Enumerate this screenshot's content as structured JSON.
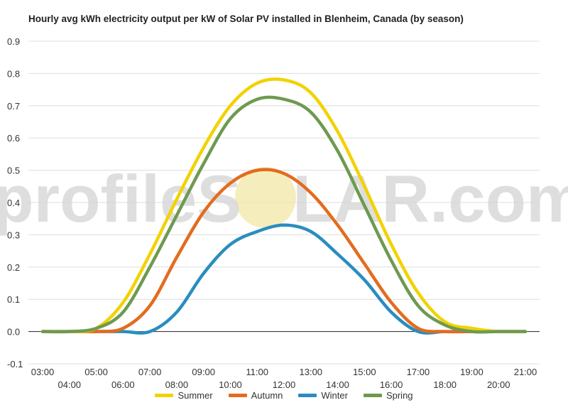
{
  "chart_data": {
    "type": "line",
    "title": "Hourly avg kWh electricity output per kW of Solar PV installed in Blenheim, Canada (by season)",
    "watermark": {
      "text_left": "profileS",
      "text_right": "LAR.com"
    },
    "xlabel": "",
    "ylabel": "",
    "ylim": [
      -0.1,
      0.9
    ],
    "yticks": [
      "-0.1",
      "0.0",
      "0.1",
      "0.2",
      "0.3",
      "0.4",
      "0.5",
      "0.6",
      "0.7",
      "0.8",
      "0.9"
    ],
    "grid": true,
    "legend_position": "bottom",
    "x": [
      "03:00",
      "04:00",
      "05:00",
      "06:00",
      "07:00",
      "08:00",
      "09:00",
      "10:00",
      "11:00",
      "12:00",
      "13:00",
      "14:00",
      "15:00",
      "16:00",
      "17:00",
      "18:00",
      "19:00",
      "20:00",
      "21:00"
    ],
    "series": [
      {
        "name": "Summer",
        "color": "#f2d200",
        "values": [
          0.0,
          0.0,
          0.01,
          0.09,
          0.24,
          0.41,
          0.57,
          0.7,
          0.77,
          0.78,
          0.74,
          0.62,
          0.45,
          0.27,
          0.12,
          0.03,
          0.01,
          0.0,
          0.0
        ]
      },
      {
        "name": "Autumn",
        "color": "#e36c1e",
        "values": [
          0.0,
          0.0,
          0.0,
          0.01,
          0.08,
          0.23,
          0.37,
          0.46,
          0.5,
          0.49,
          0.43,
          0.33,
          0.21,
          0.09,
          0.01,
          0.0,
          0.0,
          0.0,
          0.0
        ]
      },
      {
        "name": "Winter",
        "color": "#2a8dbf",
        "values": [
          0.0,
          0.0,
          0.0,
          0.0,
          0.0,
          0.06,
          0.18,
          0.27,
          0.31,
          0.33,
          0.31,
          0.24,
          0.16,
          0.06,
          0.0,
          0.0,
          0.0,
          0.0,
          0.0
        ]
      },
      {
        "name": "Spring",
        "color": "#6e9a50",
        "values": [
          0.0,
          0.0,
          0.01,
          0.06,
          0.2,
          0.36,
          0.52,
          0.66,
          0.72,
          0.72,
          0.68,
          0.56,
          0.39,
          0.22,
          0.08,
          0.02,
          0.0,
          0.0,
          0.0
        ]
      }
    ]
  }
}
